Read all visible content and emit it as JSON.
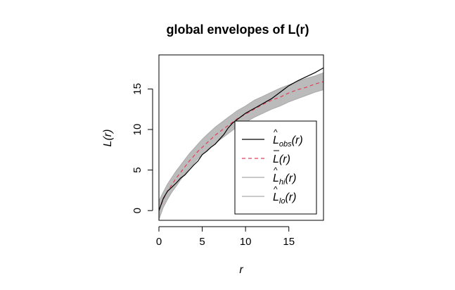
{
  "chart_data": {
    "type": "line",
    "title": "global envelopes of L(r)",
    "xlabel": "r",
    "ylabel": "L(r)",
    "xlim": [
      0,
      19
    ],
    "ylim": [
      -1.2,
      19.2
    ],
    "x_ticks": [
      0,
      5,
      10,
      15
    ],
    "y_ticks": [
      0,
      5,
      10,
      15
    ],
    "grid": false,
    "legend_position": "bottom-right",
    "colors": {
      "obs": "#000000",
      "theo": "#e0405a",
      "envelope": "#bbbbbb",
      "envelope_line": "#aaaaaa"
    },
    "series": [
      {
        "key": "obs",
        "legend_main": "L",
        "legend_sub": "obs",
        "legend_arg": "(r)",
        "legend_hat": "^",
        "style": "solid",
        "x": [
          0,
          0.5,
          1,
          1.5,
          2,
          2.5,
          3,
          3.5,
          4,
          4.5,
          5,
          5.5,
          6,
          6.5,
          7,
          7.5,
          8,
          8.5,
          9,
          9.5,
          10,
          11,
          12,
          13,
          14,
          15,
          16,
          17,
          18,
          19
        ],
        "values": [
          0,
          1.5,
          2.4,
          2.9,
          3.4,
          4.0,
          4.4,
          5.0,
          5.6,
          6.1,
          6.9,
          7.3,
          7.8,
          8.2,
          8.8,
          9.4,
          10.2,
          10.8,
          11.2,
          11.6,
          12.0,
          12.6,
          13.2,
          13.8,
          14.6,
          15.4,
          16.0,
          16.5,
          17.0,
          17.6
        ]
      },
      {
        "key": "theo",
        "legend_main": "L",
        "legend_sub": "",
        "legend_arg": "(r)",
        "legend_bar": true,
        "style": "dashed",
        "x": [
          0,
          0.5,
          1,
          1.5,
          2,
          2.5,
          3,
          3.5,
          4,
          4.5,
          5,
          5.5,
          6,
          6.5,
          7,
          7.5,
          8,
          8.5,
          9,
          9.5,
          10,
          11,
          12,
          13,
          14,
          15,
          16,
          17,
          18,
          19
        ],
        "values": [
          0,
          1.4,
          2.4,
          3.2,
          4.0,
          4.7,
          5.4,
          6.1,
          6.7,
          7.3,
          7.8,
          8.3,
          8.8,
          9.3,
          9.7,
          10.1,
          10.5,
          10.9,
          11.3,
          11.6,
          11.9,
          12.5,
          13.1,
          13.6,
          14.0,
          14.5,
          14.9,
          15.2,
          15.6,
          15.9
        ]
      },
      {
        "key": "hi",
        "legend_main": "L",
        "legend_sub": "hi",
        "legend_arg": "(r)",
        "legend_hat": "^",
        "style": "envelope",
        "x": [
          0,
          0.5,
          1,
          1.5,
          2,
          2.5,
          3,
          3.5,
          4,
          4.5,
          5,
          5.5,
          6,
          6.5,
          7,
          7.5,
          8,
          8.5,
          9,
          9.5,
          10,
          11,
          12,
          13,
          14,
          15,
          16,
          17,
          18,
          19
        ],
        "values": [
          1.2,
          2.3,
          3.3,
          4.1,
          4.9,
          5.6,
          6.3,
          7.0,
          7.6,
          8.2,
          8.8,
          9.3,
          9.8,
          10.3,
          10.7,
          11.1,
          11.5,
          11.9,
          12.3,
          12.6,
          12.9,
          13.6,
          14.1,
          14.6,
          15.1,
          15.5,
          15.9,
          16.3,
          16.6,
          17.0
        ]
      },
      {
        "key": "lo",
        "legend_main": "L",
        "legend_sub": "lo",
        "legend_arg": "(r)",
        "legend_hat": "^",
        "style": "envelope",
        "x": [
          0,
          0.5,
          1,
          1.5,
          2,
          2.5,
          3,
          3.5,
          4,
          4.5,
          5,
          5.5,
          6,
          6.5,
          7,
          7.5,
          8,
          8.5,
          9,
          9.5,
          10,
          11,
          12,
          13,
          14,
          15,
          16,
          17,
          18,
          19
        ],
        "values": [
          -1.1,
          0.4,
          1.4,
          2.3,
          3.0,
          3.8,
          4.5,
          5.2,
          5.8,
          6.4,
          6.9,
          7.4,
          7.9,
          8.3,
          8.7,
          9.1,
          9.5,
          9.9,
          10.3,
          10.6,
          10.9,
          11.5,
          12.0,
          12.5,
          12.9,
          13.4,
          13.8,
          14.2,
          14.6,
          14.9
        ]
      }
    ]
  }
}
